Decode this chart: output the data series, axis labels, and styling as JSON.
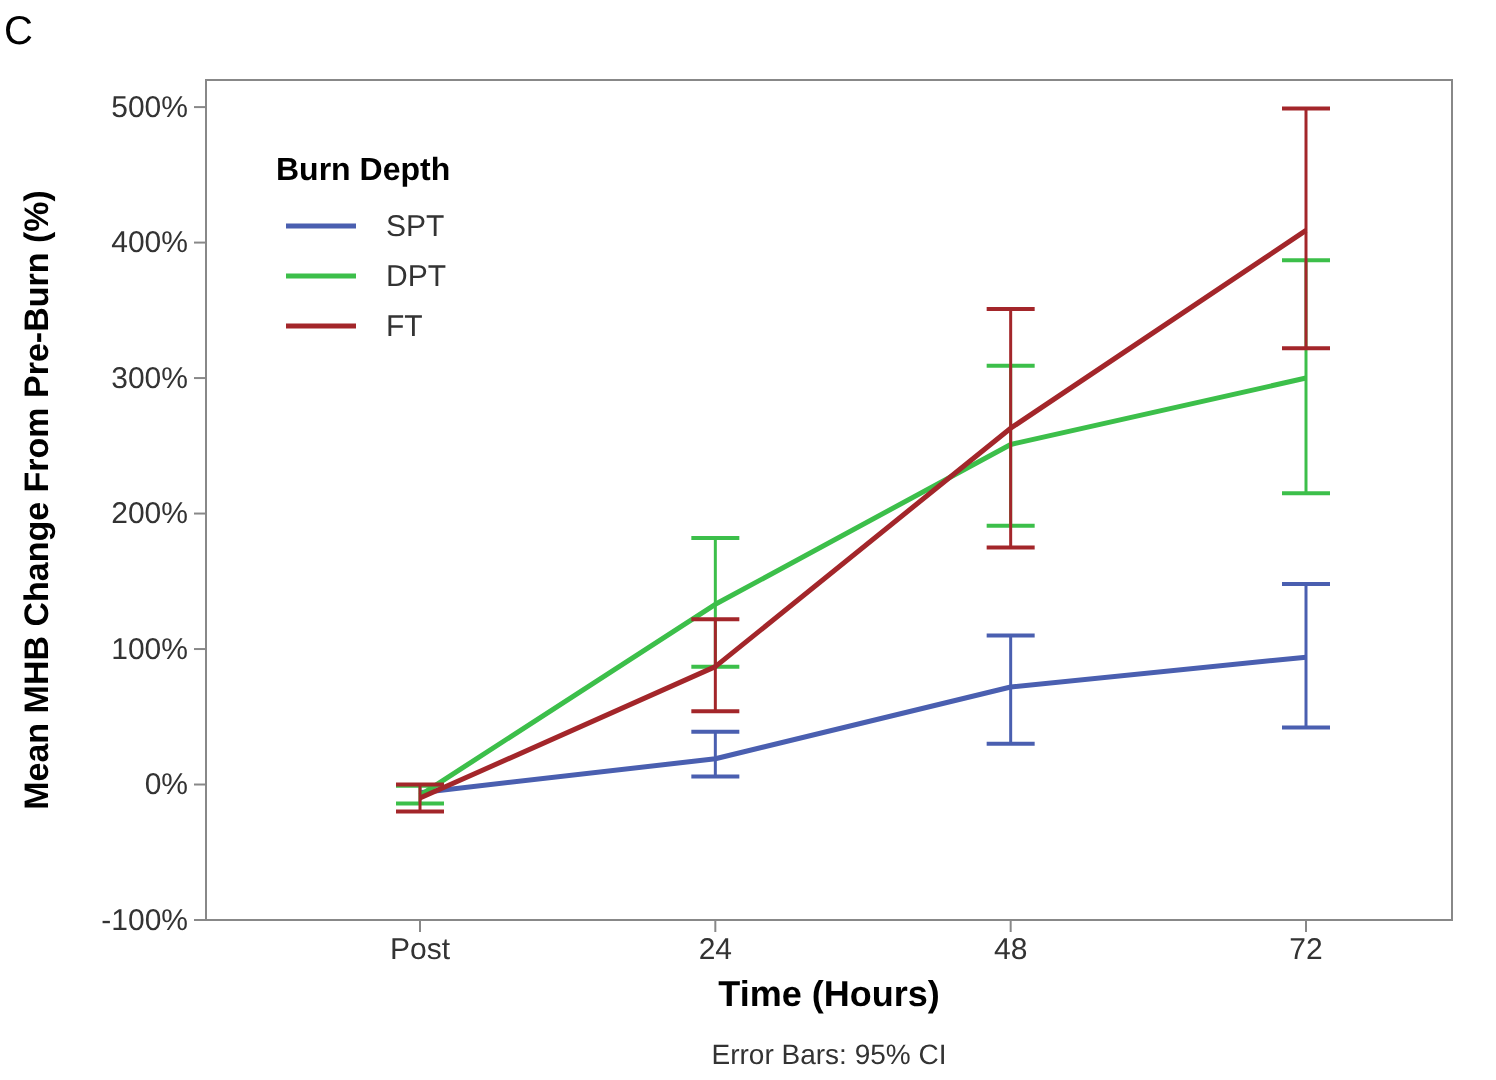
{
  "chart_data": {
    "type": "line",
    "xlabel": "Time (Hours)",
    "ylabel": "Mean MHB Change From Pre-Burn (%)",
    "legend_title": "Burn Depth",
    "legend": "top left",
    "grid": false,
    "marker": "none",
    "line_style": "solid",
    "annotations": [
      "C",
      "Error Bars: 95% CI"
    ],
    "categories": [
      "Post",
      "24",
      "48",
      "72"
    ],
    "ylim": [
      -100,
      520
    ],
    "yticks": [
      {
        "value": -100,
        "label": "-100%"
      },
      {
        "value": 0,
        "label": "0%"
      },
      {
        "value": 100,
        "label": "100%"
      },
      {
        "value": 200,
        "label": "200%"
      },
      {
        "value": 300,
        "label": "300%"
      },
      {
        "value": 400,
        "label": "400%"
      },
      {
        "value": 500,
        "label": "500%"
      }
    ],
    "series": [
      {
        "name": "SPT",
        "color": "#4a5fb0",
        "values": [
          -6,
          19,
          72,
          94
        ],
        "errors": [
          null,
          [
            6,
            39
          ],
          [
            30,
            110
          ],
          [
            42,
            148
          ]
        ]
      },
      {
        "name": "DPT",
        "color": "#3cbf4a",
        "values": [
          -8,
          133,
          251,
          300
        ],
        "errors": [
          [
            -14,
            -1
          ],
          [
            87,
            182
          ],
          [
            191,
            309
          ],
          [
            215,
            387
          ]
        ]
      },
      {
        "name": "FT",
        "color": "#a3262a",
        "values": [
          -10,
          87,
          263,
          409
        ],
        "errors": [
          [
            -20,
            0
          ],
          [
            54,
            122
          ],
          [
            175,
            351
          ],
          [
            322,
            499
          ]
        ]
      }
    ]
  }
}
